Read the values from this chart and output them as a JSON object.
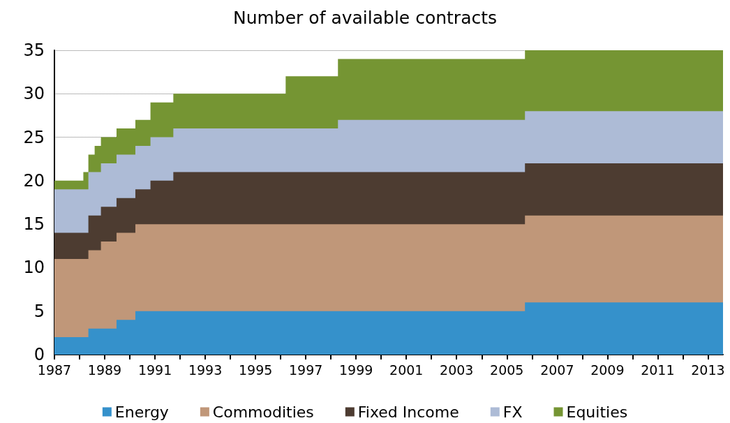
{
  "chart_data": {
    "type": "area",
    "title": "Number of available contracts",
    "stacked": true,
    "x": [
      1987,
      1988.15,
      1988.15,
      1988.35,
      1988.35,
      1988.6,
      1988.6,
      1988.85,
      1988.85,
      1989.47,
      1989.47,
      1990.22,
      1990.22,
      1990.82,
      1990.82,
      1991.73,
      1991.73,
      1996.2,
      1996.2,
      1998.28,
      1998.28,
      2005.72,
      2005.72,
      2013.6
    ],
    "series": [
      {
        "name": "Energy",
        "color": "#3591cb",
        "values": [
          2,
          2,
          2,
          2,
          3,
          3,
          3,
          3,
          3,
          3,
          4,
          4,
          5,
          5,
          5,
          5,
          5,
          5,
          5,
          5,
          5,
          5,
          6,
          6
        ]
      },
      {
        "name": "Commodities",
        "color": "#c09779",
        "values": [
          9,
          9,
          9,
          9,
          9,
          9,
          9,
          9,
          10,
          10,
          10,
          10,
          10,
          10,
          10,
          10,
          10,
          10,
          10,
          10,
          10,
          10,
          10,
          10
        ]
      },
      {
        "name": "Fixed Income",
        "color": "#4d3c31",
        "values": [
          3,
          3,
          3,
          3,
          4,
          4,
          4,
          4,
          4,
          4,
          4,
          4,
          4,
          4,
          5,
          5,
          6,
          6,
          6,
          6,
          6,
          6,
          6,
          6
        ]
      },
      {
        "name": "FX",
        "color": "#adbbd6",
        "values": [
          5,
          5,
          5,
          5,
          5,
          5,
          5,
          5,
          5,
          5,
          5,
          5,
          5,
          5,
          5,
          5,
          5,
          5,
          5,
          5,
          6,
          6,
          6,
          6
        ]
      },
      {
        "name": "Equities",
        "color": "#759533",
        "values": [
          1,
          1,
          2,
          2,
          2,
          2,
          3,
          3,
          3,
          3,
          3,
          3,
          3,
          3,
          4,
          4,
          4,
          4,
          6,
          6,
          7,
          7,
          7,
          7
        ]
      }
    ],
    "xlim": [
      1987,
      2013.6
    ],
    "xticks": [
      1987,
      {
        "value": 1988,
        "label": null
      },
      1989,
      {
        "value": 1990,
        "label": null
      },
      1991,
      {
        "value": 1992,
        "label": null
      },
      1993,
      {
        "value": 1994,
        "label": null
      },
      1995,
      {
        "value": 1996,
        "label": null
      },
      1997,
      {
        "value": 1998,
        "label": null
      },
      1999,
      {
        "value": 2000,
        "label": null
      },
      2001,
      {
        "value": 2002,
        "label": null
      },
      2003,
      {
        "value": 2004,
        "label": null
      },
      2005,
      {
        "value": 2006,
        "label": null
      },
      2007,
      {
        "value": 2008,
        "label": null
      },
      2009,
      {
        "value": 2010,
        "label": null
      },
      2011,
      {
        "value": 2012,
        "label": null
      },
      2013
    ],
    "ylim": [
      0,
      35
    ],
    "yticks": [
      0,
      5,
      10,
      15,
      20,
      25,
      30,
      35
    ],
    "grid": "y",
    "legend": "bottom",
    "marker": "none"
  }
}
